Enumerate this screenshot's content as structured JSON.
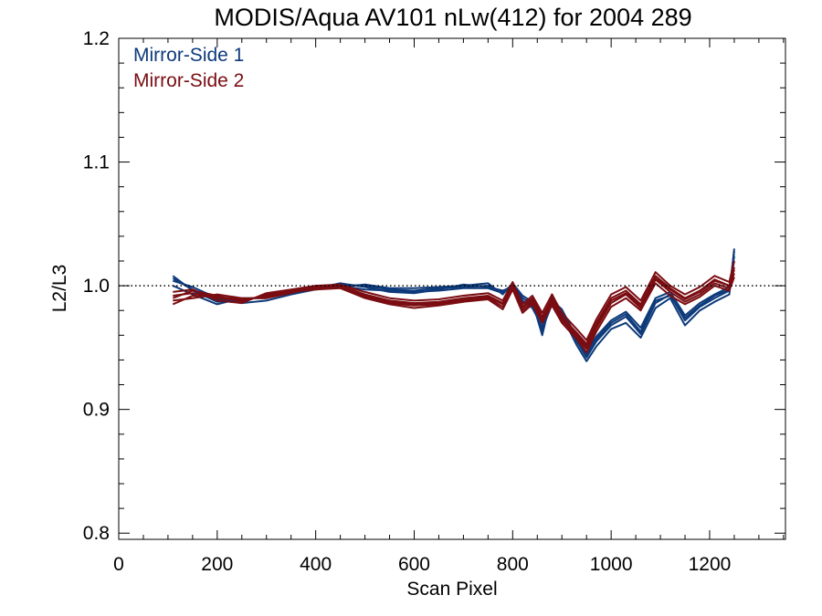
{
  "chart_data": {
    "type": "line",
    "title": "MODIS/Aqua AV101 nLw(412) for 2004 289",
    "xlabel": "Scan Pixel",
    "ylabel": "L2/L3",
    "xlim": [
      0,
      1354
    ],
    "ylim": [
      0.795,
      1.2
    ],
    "x_ticks": [
      0,
      200,
      400,
      600,
      800,
      1000,
      1200
    ],
    "x_tick_labels": [
      "0",
      "200",
      "400",
      "600",
      "800",
      "1000",
      "1200"
    ],
    "y_ticks": [
      0.8,
      0.9,
      1.0,
      1.1,
      1.2
    ],
    "y_tick_labels": [
      "0.8",
      "0.9",
      "1.0",
      "1.1",
      "1.2"
    ],
    "reference_line": 1.0,
    "legend_position": "top-left",
    "legend": [
      {
        "label": "Mirror-Side 1",
        "color": "#0d3a7a"
      },
      {
        "label": "Mirror-Side 2",
        "color": "#7a0d12"
      }
    ],
    "x": [
      110,
      150,
      200,
      250,
      300,
      350,
      400,
      450,
      500,
      550,
      600,
      650,
      700,
      750,
      780,
      800,
      820,
      840,
      860,
      880,
      900,
      930,
      950,
      970,
      1000,
      1030,
      1060,
      1090,
      1120,
      1150,
      1180,
      1210,
      1240,
      1250
    ],
    "series": [
      {
        "group": "Mirror-Side 1",
        "color": "#0d3a7a",
        "values": [
          1.008,
          0.996,
          0.987,
          0.989,
          0.991,
          0.994,
          0.999,
          1.001,
          1.0,
          0.997,
          0.996,
          0.998,
          0.999,
          1.0,
          0.995,
          1.001,
          0.99,
          0.985,
          0.963,
          0.99,
          0.978,
          0.955,
          0.942,
          0.955,
          0.968,
          0.975,
          0.961,
          0.986,
          0.993,
          0.972,
          0.983,
          0.99,
          0.996,
          1.028
        ]
      },
      {
        "group": "Mirror-Side 1",
        "color": "#0d3a7a",
        "values": [
          1.004,
          0.999,
          0.99,
          0.987,
          0.993,
          0.996,
          0.998,
          1.002,
          0.999,
          0.995,
          0.994,
          0.997,
          1.001,
          0.999,
          0.996,
          0.999,
          0.988,
          0.982,
          0.967,
          0.988,
          0.981,
          0.958,
          0.946,
          0.959,
          0.972,
          0.979,
          0.966,
          0.99,
          0.995,
          0.976,
          0.986,
          0.993,
          0.999,
          1.02
        ]
      },
      {
        "group": "Mirror-Side 1",
        "color": "#0d3a7a",
        "values": [
          1.0,
          0.993,
          0.985,
          0.99,
          0.99,
          0.995,
          1.0,
          0.999,
          1.001,
          0.998,
          0.998,
          0.999,
          1.0,
          1.002,
          0.993,
          1.002,
          0.992,
          0.987,
          0.96,
          0.993,
          0.976,
          0.952,
          0.939,
          0.951,
          0.965,
          0.97,
          0.958,
          0.982,
          0.99,
          0.968,
          0.98,
          0.987,
          0.993,
          1.03
        ]
      },
      {
        "group": "Mirror-Side 1",
        "color": "#0d3a7a",
        "values": [
          1.006,
          0.997,
          0.989,
          0.986,
          0.988,
          0.993,
          0.997,
          1.0,
          0.997,
          0.996,
          0.995,
          0.996,
          0.998,
          0.998,
          0.994,
          1.0,
          0.987,
          0.984,
          0.965,
          0.985,
          0.979,
          0.956,
          0.944,
          0.957,
          0.97,
          0.977,
          0.963,
          0.988,
          0.992,
          0.974,
          0.984,
          0.992,
          0.997,
          1.024
        ]
      },
      {
        "group": "Mirror-Side 2",
        "color": "#7a0d12",
        "values": [
          0.992,
          0.994,
          0.99,
          0.988,
          0.992,
          0.996,
          0.998,
          1.0,
          0.993,
          0.988,
          0.986,
          0.987,
          0.99,
          0.992,
          0.986,
          1.001,
          0.983,
          0.99,
          0.975,
          0.99,
          0.975,
          0.962,
          0.953,
          0.97,
          0.99,
          0.996,
          0.985,
          1.008,
          0.998,
          0.99,
          0.996,
          1.005,
          1.0,
          1.015
        ]
      },
      {
        "group": "Mirror-Side 2",
        "color": "#7a0d12",
        "values": [
          0.988,
          0.99,
          0.993,
          0.99,
          0.99,
          0.994,
          0.999,
          0.999,
          0.991,
          0.986,
          0.984,
          0.985,
          0.988,
          0.99,
          0.983,
          0.998,
          0.98,
          0.987,
          0.972,
          0.986,
          0.972,
          0.959,
          0.949,
          0.966,
          0.986,
          0.993,
          0.982,
          1.005,
          0.995,
          0.987,
          0.993,
          1.002,
          0.998,
          1.01
        ]
      },
      {
        "group": "Mirror-Side 2",
        "color": "#7a0d12",
        "values": [
          0.995,
          0.997,
          0.988,
          0.986,
          0.994,
          0.997,
          1.0,
          1.001,
          0.995,
          0.99,
          0.988,
          0.989,
          0.992,
          0.994,
          0.988,
          1.003,
          0.985,
          0.992,
          0.978,
          0.993,
          0.978,
          0.965,
          0.956,
          0.973,
          0.993,
          0.999,
          0.988,
          1.011,
          1.0,
          0.993,
          0.999,
          1.008,
          1.003,
          1.02
        ]
      },
      {
        "group": "Mirror-Side 2",
        "color": "#7a0d12",
        "values": [
          0.985,
          0.992,
          0.991,
          0.989,
          0.991,
          0.995,
          0.997,
          0.998,
          0.99,
          0.985,
          0.982,
          0.984,
          0.987,
          0.989,
          0.981,
          0.997,
          0.978,
          0.985,
          0.97,
          0.984,
          0.97,
          0.957,
          0.946,
          0.963,
          0.983,
          0.99,
          0.98,
          1.002,
          0.992,
          0.985,
          0.991,
          1.0,
          0.996,
          1.007
        ]
      },
      {
        "group": "Mirror-Side 2",
        "color": "#7a0d12",
        "values": [
          0.99,
          0.996,
          0.992,
          0.987,
          0.993,
          0.996,
          0.999,
          1.0,
          0.992,
          0.987,
          0.985,
          0.986,
          0.989,
          0.991,
          0.985,
          1.0,
          0.982,
          0.989,
          0.974,
          0.988,
          0.974,
          0.961,
          0.951,
          0.968,
          0.988,
          0.994,
          0.984,
          1.006,
          0.997,
          0.989,
          0.995,
          1.004,
          1.0,
          1.013
        ]
      }
    ]
  }
}
